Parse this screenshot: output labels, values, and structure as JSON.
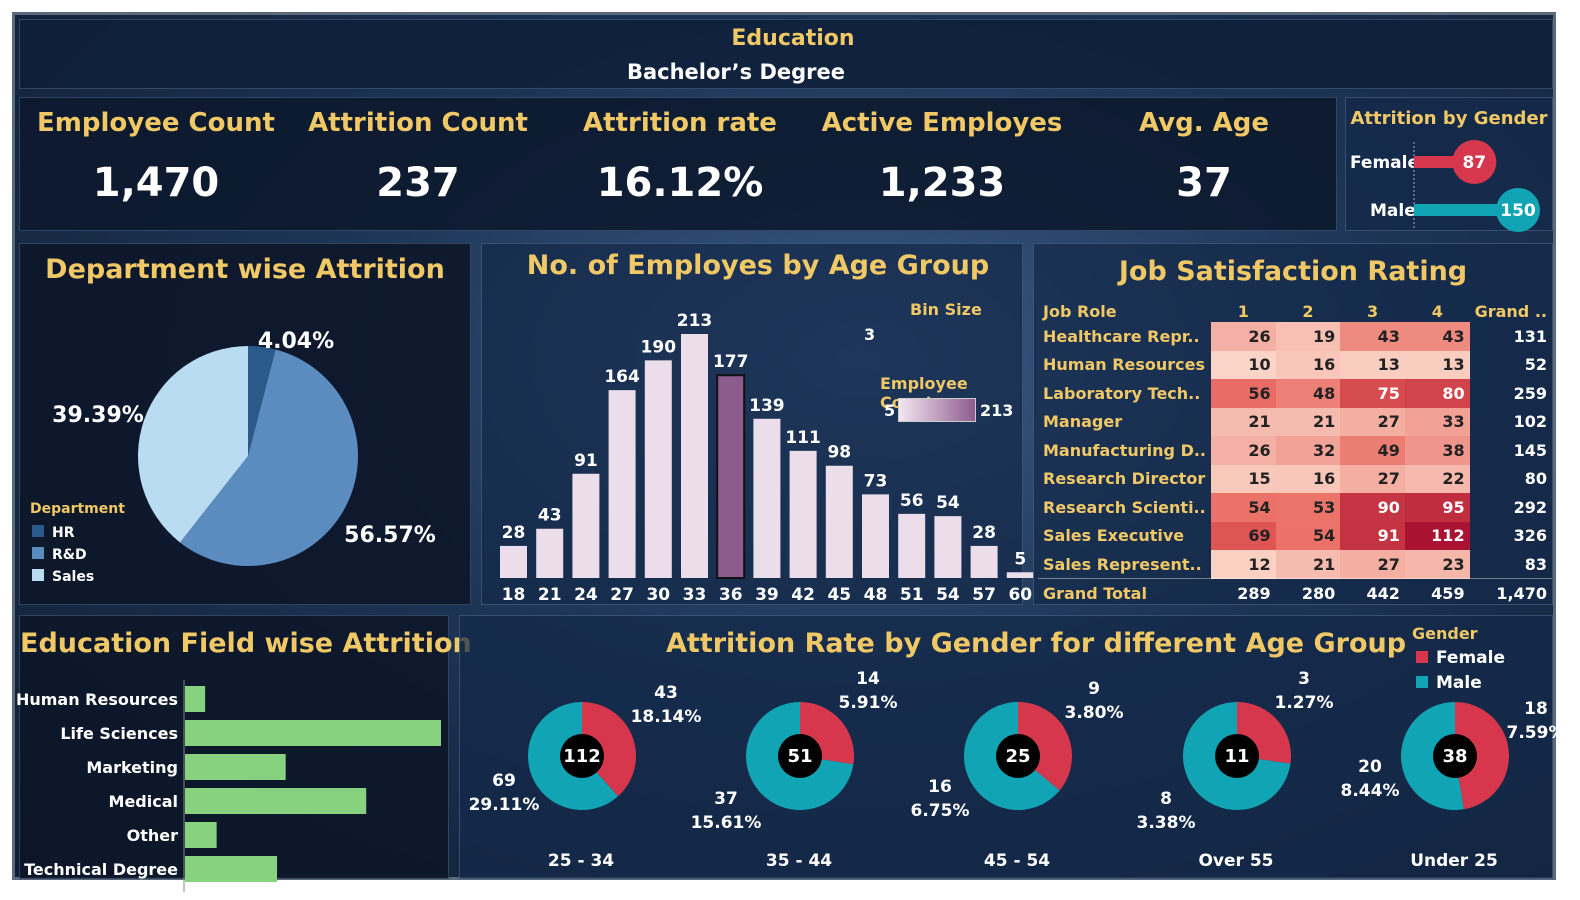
{
  "header": {
    "filter_label": "Education",
    "filter_value": "Bachelor’s Degree"
  },
  "kpis": [
    {
      "label": "Employee Count",
      "value": "1,470"
    },
    {
      "label": "Attrition Count",
      "value": "237"
    },
    {
      "label": "Attrition rate",
      "value": "16.12%"
    },
    {
      "label": "Active Employes",
      "value": "1,233"
    },
    {
      "label": "Avg. Age",
      "value": "37"
    }
  ],
  "gender_attrition": {
    "title": "Attrition by Gender",
    "items": [
      {
        "label": "Female",
        "value": 87,
        "color": "#d7374d"
      },
      {
        "label": "Male",
        "value": 150,
        "color": "#11a4b4"
      }
    ]
  },
  "department": {
    "title": "Department wise Attrition",
    "legend_title": "Department",
    "legend": [
      "HR",
      "R&D",
      "Sales"
    ]
  },
  "age_group": {
    "title": "No. of Employes by Age Group",
    "bin_label": "Bin Size",
    "bin_value": "3",
    "color_legend_title": "Employee Count",
    "color_min": "5",
    "color_max": "213"
  },
  "job_satisfaction": {
    "title": "Job Satisfaction Rating",
    "columns": [
      "Job Role",
      "1",
      "2",
      "3",
      "4",
      "Grand .."
    ],
    "rows": [
      {
        "role": "Healthcare Repr..",
        "values": [
          26,
          19,
          43,
          43
        ],
        "total": "131"
      },
      {
        "role": "Human Resources",
        "values": [
          10,
          16,
          13,
          13
        ],
        "total": "52"
      },
      {
        "role": "Laboratory Tech..",
        "values": [
          56,
          48,
          75,
          80
        ],
        "total": "259"
      },
      {
        "role": "Manager",
        "values": [
          21,
          21,
          27,
          33
        ],
        "total": "102"
      },
      {
        "role": "Manufacturing D..",
        "values": [
          26,
          32,
          49,
          38
        ],
        "total": "145"
      },
      {
        "role": "Research Director",
        "values": [
          15,
          16,
          27,
          22
        ],
        "total": "80"
      },
      {
        "role": "Research Scienti..",
        "values": [
          54,
          53,
          90,
          95
        ],
        "total": "292"
      },
      {
        "role": "Sales Executive",
        "values": [
          69,
          54,
          91,
          112
        ],
        "total": "326"
      },
      {
        "role": "Sales Represent..",
        "values": [
          12,
          21,
          27,
          23
        ],
        "total": "83"
      }
    ],
    "total_row": {
      "role": "Grand Total",
      "values": [
        "289",
        "280",
        "442",
        "459"
      ],
      "total": "1,470"
    }
  },
  "education_field": {
    "title": "Education Field wise Attrition"
  },
  "gender_age": {
    "title": "Attrition Rate by Gender for different Age Group",
    "legend_title": "Gender",
    "legend": [
      {
        "label": "Female",
        "color": "#d7374d"
      },
      {
        "label": "Male",
        "color": "#11a4b4"
      }
    ]
  },
  "chart_data": [
    {
      "type": "pie",
      "title": "Department wise Attrition",
      "labels": [
        "HR",
        "R&D",
        "Sales"
      ],
      "values": [
        4.04,
        56.57,
        39.39
      ],
      "value_labels": [
        "4.04%",
        "56.57%",
        "39.39%"
      ],
      "colors": [
        "#2b5a8a",
        "#5b8cc0",
        "#b9dcf2"
      ],
      "legend_position": "bottom-left"
    },
    {
      "type": "bar",
      "title": "No. of Employes by Age Group",
      "categories": [
        "18",
        "21",
        "24",
        "27",
        "30",
        "33",
        "36",
        "39",
        "42",
        "45",
        "48",
        "51",
        "54",
        "57",
        "60"
      ],
      "values": [
        28,
        43,
        91,
        164,
        190,
        213,
        177,
        139,
        111,
        98,
        73,
        56,
        54,
        28,
        5
      ],
      "highlighted_category": "36",
      "highlight_color": "#8d5c8f",
      "ylim": [
        0,
        213
      ]
    },
    {
      "type": "bar",
      "orientation": "horizontal",
      "title": "Education Field wise Attrition",
      "categories": [
        "Human Resources",
        "Life Sciences",
        "Marketing",
        "Medical",
        "Other",
        "Technical Degree"
      ],
      "values": [
        7,
        89,
        35,
        63,
        11,
        32
      ],
      "color": "#86d27f"
    },
    {
      "type": "pie",
      "subtype": "donut",
      "title": "Attrition Rate by Gender for different Age Group",
      "groups": [
        {
          "age_group": "25 - 34",
          "total": "112",
          "female": 43,
          "female_pct": "18.14%",
          "male": 69,
          "male_pct": "29.11%"
        },
        {
          "age_group": "35 - 44",
          "total": "51",
          "female": 14,
          "female_pct": "5.91%",
          "male": 37,
          "male_pct": "15.61%"
        },
        {
          "age_group": "45 - 54",
          "total": "25",
          "female": 9,
          "female_pct": "3.80%",
          "male": 16,
          "male_pct": "6.75%"
        },
        {
          "age_group": "Over 55",
          "total": "11",
          "female": 3,
          "female_pct": "1.27%",
          "male": 8,
          "male_pct": "3.38%"
        },
        {
          "age_group": "Under 25",
          "total": "38",
          "female": 18,
          "female_pct": "7.59%",
          "male": 20,
          "male_pct": "8.44%"
        }
      ]
    }
  ]
}
